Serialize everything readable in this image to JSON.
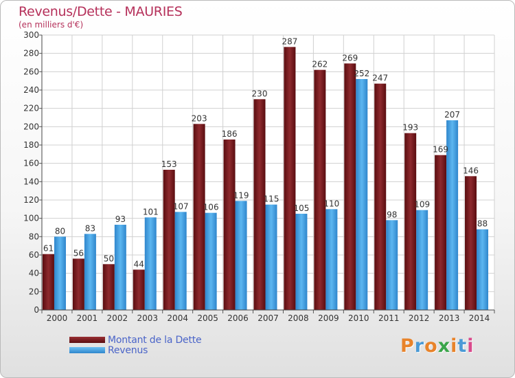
{
  "header": {
    "title": "Revenus/Dette - MAURIES",
    "subtitle": "(en milliers d'€)"
  },
  "chart_data": {
    "type": "bar",
    "categories": [
      "2000",
      "2001",
      "2002",
      "2003",
      "2004",
      "2005",
      "2006",
      "2007",
      "2008",
      "2009",
      "2010",
      "2011",
      "2012",
      "2013",
      "2014"
    ],
    "series": [
      {
        "name": "Montant de la Dette",
        "color": "#7a1a1e",
        "values": [
          61,
          56,
          50,
          44,
          153,
          203,
          186,
          230,
          287,
          262,
          269,
          247,
          193,
          169,
          146
        ]
      },
      {
        "name": "Revenus",
        "color": "#4aa5e6",
        "values": [
          80,
          83,
          93,
          101,
          107,
          106,
          119,
          115,
          105,
          110,
          252,
          98,
          109,
          207,
          88
        ]
      }
    ],
    "ylim": [
      0,
      300
    ],
    "yticks": [
      0,
      20,
      40,
      60,
      80,
      100,
      120,
      140,
      160,
      180,
      200,
      220,
      240,
      260,
      280,
      300
    ],
    "grid": true,
    "legend_position": "bottom-left"
  },
  "legend": {
    "items": [
      {
        "label": "Montant de la Dette",
        "color": "#7a1a1e"
      },
      {
        "label": "Revenus",
        "color": "#4aa5e6"
      }
    ]
  },
  "logo": {
    "letters": [
      "P",
      "r",
      "o",
      "x",
      "i",
      "t",
      "i"
    ],
    "colors": [
      "#e8832a",
      "#4a9ad6",
      "#e8832a",
      "#3aa54a",
      "#e8832a",
      "#4a9ad6",
      "#d94a8c"
    ]
  }
}
